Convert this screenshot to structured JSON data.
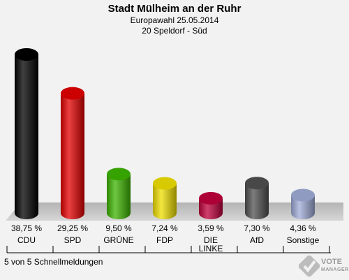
{
  "header": {
    "title": "Stadt Mülheim an der Ruhr",
    "subtitle1": "Europawahl 25.05.2014",
    "subtitle2": "20 Speldorf - Süd"
  },
  "footer": {
    "reports": "5 von 5 Schnellmeldungen",
    "logo_line1": "VOTE",
    "logo_line2": "MANAGER"
  },
  "chart_data": {
    "type": "bar",
    "categories": [
      "CDU",
      "SPD",
      "GRÜNE",
      "FDP",
      "DIE LINKE",
      "AfD",
      "Sonstige"
    ],
    "values": [
      38.75,
      29.25,
      9.5,
      7.24,
      3.59,
      7.3,
      4.36
    ],
    "value_labels": [
      "38,75 %",
      "29,25 %",
      "9,50 %",
      "7,24 %",
      "3,59 %",
      "7,30 %",
      "4,36 %"
    ],
    "colors": [
      "#000000",
      "#e30000",
      "#3cb400",
      "#f0e000",
      "#c0003c",
      "#505050",
      "#a0acd8"
    ],
    "ylim": [
      0,
      40
    ]
  }
}
